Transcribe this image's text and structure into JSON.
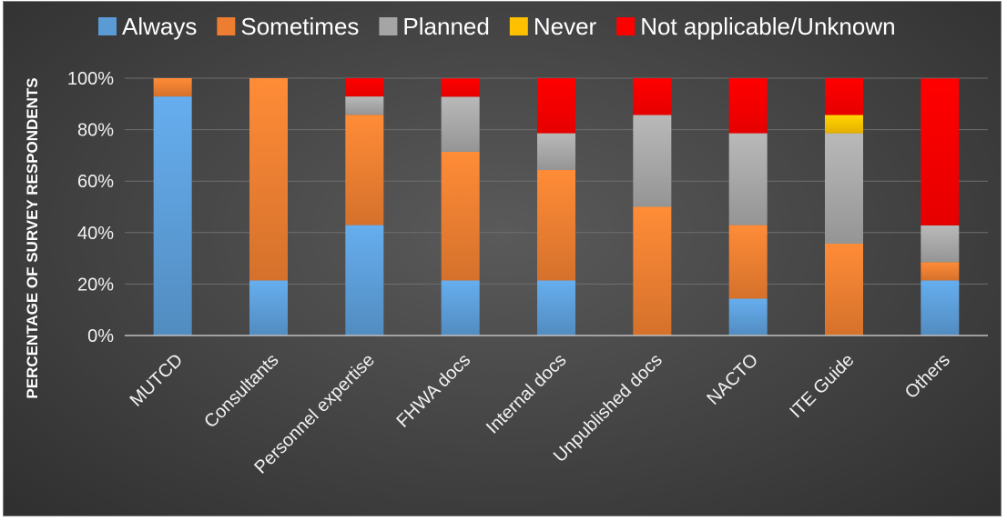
{
  "chart_data": {
    "type": "bar",
    "stacked": true,
    "categories": [
      "MUTCD",
      "Consultants",
      "Personnel expertise",
      "FHWA docs",
      "Internal docs",
      "Unpublished docs",
      "NACTO",
      "ITE Guide",
      "Others"
    ],
    "series": [
      {
        "name": "Always",
        "color": "#5b9bd5",
        "values": [
          92.9,
          21.4,
          42.9,
          21.4,
          21.4,
          0,
          14.3,
          0,
          21.4
        ]
      },
      {
        "name": "Sometimes",
        "color": "#ed7d31",
        "values": [
          7.1,
          78.6,
          42.9,
          50.0,
          42.9,
          50.0,
          28.6,
          35.7,
          7.1
        ]
      },
      {
        "name": "Planned",
        "color": "#a5a5a5",
        "values": [
          0,
          0,
          7.1,
          21.4,
          14.3,
          35.7,
          35.7,
          42.9,
          14.3
        ]
      },
      {
        "name": "Never",
        "color": "#ffc000",
        "values": [
          0,
          0,
          0,
          0,
          0,
          0,
          0,
          7.1,
          0
        ]
      },
      {
        "name": "Not applicable/Unknown",
        "color": "#ff0000",
        "values": [
          0,
          0,
          7.1,
          7.1,
          21.4,
          14.3,
          21.4,
          14.3,
          57.1
        ]
      }
    ],
    "yticks": [
      "0%",
      "20%",
      "40%",
      "60%",
      "80%",
      "100%"
    ],
    "ylabel": "PERCENTAGE OF SURVEY RESPONDENTS",
    "xlabel": "",
    "ylim": [
      0,
      100
    ],
    "grid": true,
    "legend_position": "top"
  }
}
